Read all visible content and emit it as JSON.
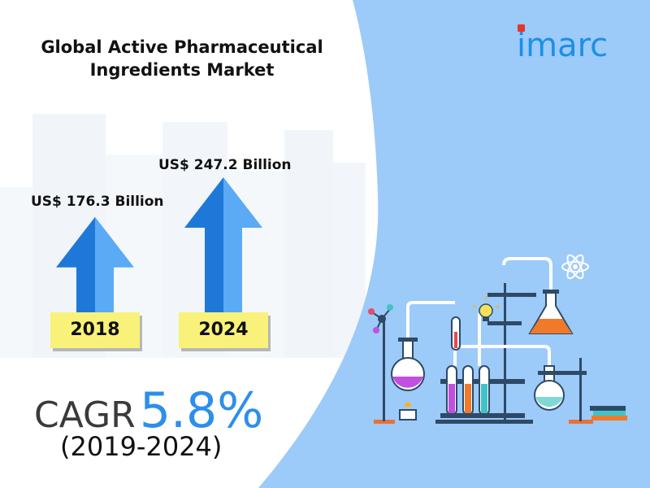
{
  "title_line1": "Global Active Pharmaceutical",
  "title_line2": "Ingredients Market",
  "logo_text": "imarc",
  "cagr_label": "CAGR",
  "cagr_value": "5.8%",
  "cagr_period": "(2019-2024)",
  "icons": [
    "atom-icon",
    "lightbulb-icon",
    "flask-icon",
    "test-tube-icon",
    "bunsen-burner-icon",
    "thermometer-icon",
    "books-icon"
  ],
  "colors": {
    "accent_blue": "#2d8eec",
    "panel_blue": "#9ccaf9",
    "arrow_blue": "#2f8ef0",
    "year_yellow": "#f8f27a",
    "logo_red": "#e8352c"
  },
  "chart_data": {
    "type": "bar",
    "categories": [
      "2018",
      "2024"
    ],
    "values": [
      176.3,
      247.2
    ],
    "value_labels": [
      "US$ 176.3 Billion",
      "US$ 247.2 Billion"
    ],
    "unit": "US$ Billion",
    "title": "Global Active Pharmaceutical Ingredients Market"
  }
}
